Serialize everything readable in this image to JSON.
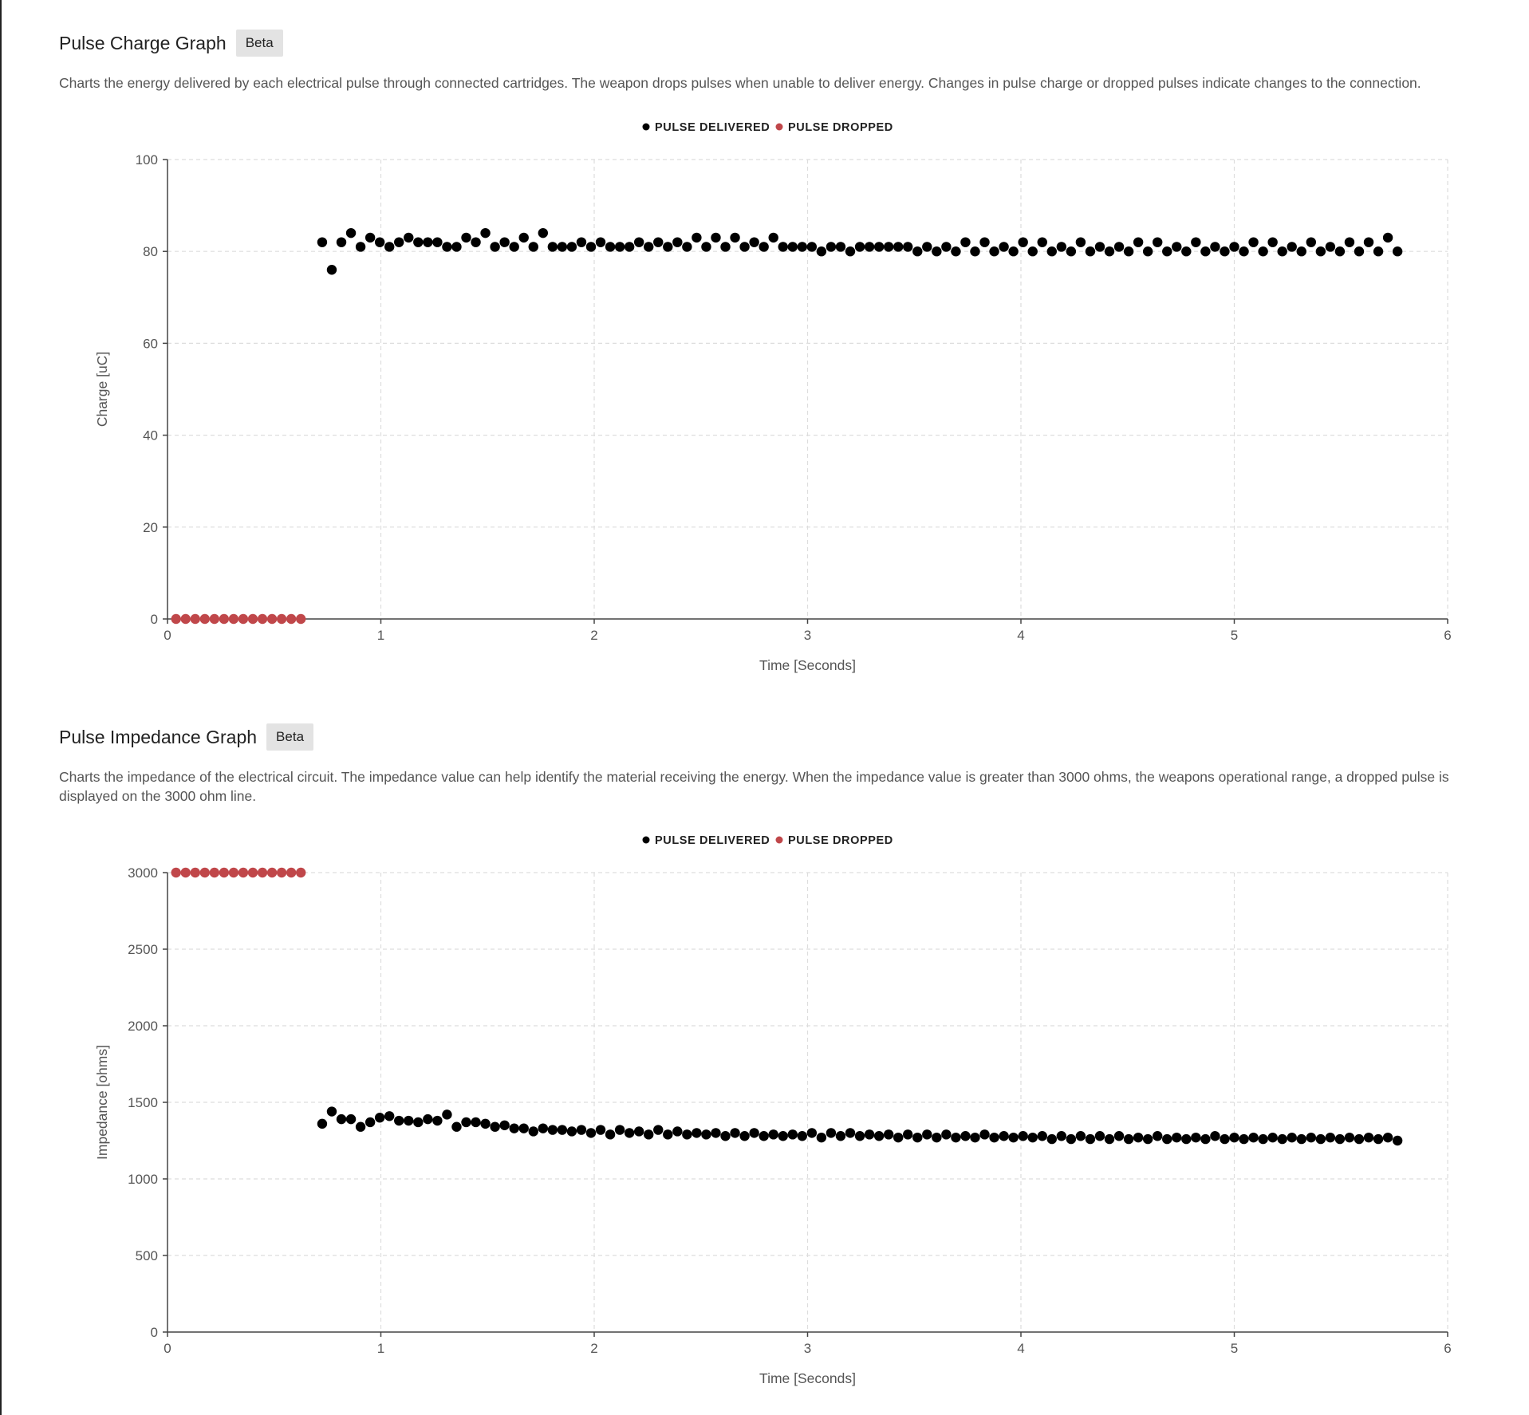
{
  "sections": [
    {
      "title": "Pulse Charge Graph",
      "badge": "Beta",
      "description": "Charts the energy delivered by each electrical pulse through connected cartridges. The weapon drops pulses when unable to deliver energy. Changes in pulse charge or dropped pulses indicate changes to the connection."
    },
    {
      "title": "Pulse Impedance Graph",
      "badge": "Beta",
      "description": "Charts the impedance of the electrical circuit. The impedance value can help identify the material receiving the energy. When the impedance value is greater than 3000 ohms, the weapons operational range, a dropped pulse is displayed on the 3000 ohm line."
    }
  ],
  "colors": {
    "delivered": "#000000",
    "dropped": "#c0474a",
    "grid": "#dddddd",
    "axis": "#444444"
  },
  "chart_data": [
    {
      "type": "scatter",
      "xlabel": "Time [Seconds]",
      "ylabel": "Charge [uC]",
      "xlim": [
        0,
        6
      ],
      "ylim": [
        0,
        100
      ],
      "xticks": [
        0,
        1,
        2,
        3,
        4,
        5,
        6
      ],
      "yticks": [
        0,
        20,
        40,
        60,
        80,
        100
      ],
      "grid": true,
      "legend_position": "top-center",
      "series": [
        {
          "name": "PULSE DELIVERED",
          "color": "#000000",
          "x": [
            0.725,
            0.77,
            0.815,
            0.86,
            0.905,
            0.95,
            0.995,
            1.04,
            1.085,
            1.13,
            1.175,
            1.22,
            1.265,
            1.31,
            1.355,
            1.4,
            1.445,
            1.49,
            1.535,
            1.58,
            1.625,
            1.67,
            1.715,
            1.76,
            1.805,
            1.85,
            1.895,
            1.94,
            1.985,
            2.03,
            2.075,
            2.12,
            2.165,
            2.21,
            2.255,
            2.3,
            2.345,
            2.39,
            2.435,
            2.48,
            2.525,
            2.57,
            2.615,
            2.66,
            2.705,
            2.75,
            2.795,
            2.84,
            2.885,
            2.93,
            2.975,
            3.02,
            3.065,
            3.11,
            3.155,
            3.2,
            3.245,
            3.29,
            3.335,
            3.38,
            3.425,
            3.47,
            3.515,
            3.56,
            3.605,
            3.65,
            3.695,
            3.74,
            3.785,
            3.83,
            3.875,
            3.92,
            3.965,
            4.01,
            4.055,
            4.1,
            4.145,
            4.19,
            4.235,
            4.28,
            4.325,
            4.37,
            4.415,
            4.46,
            4.505,
            4.55,
            4.595,
            4.64,
            4.685,
            4.73,
            4.775,
            4.82,
            4.865,
            4.91,
            4.955,
            5.0,
            5.045,
            5.09,
            5.135,
            5.18,
            5.225,
            5.27,
            5.315,
            5.36,
            5.405,
            5.45,
            5.495,
            5.54,
            5.585,
            5.63,
            5.675,
            5.72,
            5.765
          ],
          "y": [
            82,
            76,
            82,
            84,
            81,
            83,
            82,
            81,
            82,
            83,
            82,
            82,
            82,
            81,
            81,
            83,
            82,
            84,
            81,
            82,
            81,
            83,
            81,
            84,
            81,
            81,
            81,
            82,
            81,
            82,
            81,
            81,
            81,
            82,
            81,
            82,
            81,
            82,
            81,
            83,
            81,
            83,
            81,
            83,
            81,
            82,
            81,
            83,
            81,
            81,
            81,
            81,
            80,
            81,
            81,
            80,
            81,
            81,
            81,
            81,
            81,
            81,
            80,
            81,
            80,
            81,
            80,
            82,
            80,
            82,
            80,
            81,
            80,
            82,
            80,
            82,
            80,
            81,
            80,
            82,
            80,
            81,
            80,
            81,
            80,
            82,
            80,
            82,
            80,
            81,
            80,
            82,
            80,
            81,
            80,
            81,
            80,
            82,
            80,
            82,
            80,
            81,
            80,
            82,
            80,
            81,
            80,
            82,
            80,
            82,
            80,
            83,
            80
          ]
        },
        {
          "name": "PULSE DROPPED",
          "color": "#c0474a",
          "x": [
            0.04,
            0.085,
            0.13,
            0.175,
            0.22,
            0.265,
            0.31,
            0.355,
            0.4,
            0.445,
            0.49,
            0.535,
            0.58,
            0.625
          ],
          "y": [
            0,
            0,
            0,
            0,
            0,
            0,
            0,
            0,
            0,
            0,
            0,
            0,
            0,
            0
          ]
        }
      ]
    },
    {
      "type": "scatter",
      "xlabel": "Time [Seconds]",
      "ylabel": "Impedance [ohms]",
      "xlim": [
        0,
        6
      ],
      "ylim": [
        0,
        3000
      ],
      "xticks": [
        0,
        1,
        2,
        3,
        4,
        5,
        6
      ],
      "yticks": [
        0,
        500,
        1000,
        1500,
        2000,
        2500,
        3000
      ],
      "grid": true,
      "legend_position": "top-center",
      "series": [
        {
          "name": "PULSE DELIVERED",
          "color": "#000000",
          "x": [
            0.725,
            0.77,
            0.815,
            0.86,
            0.905,
            0.95,
            0.995,
            1.04,
            1.085,
            1.13,
            1.175,
            1.22,
            1.265,
            1.31,
            1.355,
            1.4,
            1.445,
            1.49,
            1.535,
            1.58,
            1.625,
            1.67,
            1.715,
            1.76,
            1.805,
            1.85,
            1.895,
            1.94,
            1.985,
            2.03,
            2.075,
            2.12,
            2.165,
            2.21,
            2.255,
            2.3,
            2.345,
            2.39,
            2.435,
            2.48,
            2.525,
            2.57,
            2.615,
            2.66,
            2.705,
            2.75,
            2.795,
            2.84,
            2.885,
            2.93,
            2.975,
            3.02,
            3.065,
            3.11,
            3.155,
            3.2,
            3.245,
            3.29,
            3.335,
            3.38,
            3.425,
            3.47,
            3.515,
            3.56,
            3.605,
            3.65,
            3.695,
            3.74,
            3.785,
            3.83,
            3.875,
            3.92,
            3.965,
            4.01,
            4.055,
            4.1,
            4.145,
            4.19,
            4.235,
            4.28,
            4.325,
            4.37,
            4.415,
            4.46,
            4.505,
            4.55,
            4.595,
            4.64,
            4.685,
            4.73,
            4.775,
            4.82,
            4.865,
            4.91,
            4.955,
            5.0,
            5.045,
            5.09,
            5.135,
            5.18,
            5.225,
            5.27,
            5.315,
            5.36,
            5.405,
            5.45,
            5.495,
            5.54,
            5.585,
            5.63,
            5.675,
            5.72,
            5.765
          ],
          "y": [
            1360,
            1440,
            1390,
            1390,
            1340,
            1370,
            1400,
            1410,
            1380,
            1380,
            1370,
            1390,
            1380,
            1420,
            1340,
            1370,
            1370,
            1360,
            1340,
            1350,
            1330,
            1330,
            1310,
            1330,
            1320,
            1320,
            1310,
            1320,
            1300,
            1320,
            1290,
            1320,
            1300,
            1310,
            1290,
            1320,
            1290,
            1310,
            1290,
            1300,
            1290,
            1300,
            1280,
            1300,
            1280,
            1300,
            1280,
            1290,
            1280,
            1290,
            1280,
            1300,
            1270,
            1300,
            1280,
            1300,
            1280,
            1290,
            1280,
            1290,
            1270,
            1290,
            1270,
            1290,
            1270,
            1290,
            1270,
            1280,
            1270,
            1290,
            1270,
            1280,
            1270,
            1280,
            1270,
            1280,
            1260,
            1280,
            1260,
            1280,
            1260,
            1280,
            1260,
            1280,
            1260,
            1270,
            1260,
            1280,
            1260,
            1270,
            1260,
            1270,
            1260,
            1280,
            1260,
            1270,
            1260,
            1270,
            1260,
            1270,
            1260,
            1270,
            1260,
            1270,
            1260,
            1270,
            1260,
            1270,
            1260,
            1270,
            1260,
            1270,
            1250
          ]
        },
        {
          "name": "PULSE DROPPED",
          "color": "#c0474a",
          "x": [
            0.04,
            0.085,
            0.13,
            0.175,
            0.22,
            0.265,
            0.31,
            0.355,
            0.4,
            0.445,
            0.49,
            0.535,
            0.58,
            0.625
          ],
          "y": [
            3000,
            3000,
            3000,
            3000,
            3000,
            3000,
            3000,
            3000,
            3000,
            3000,
            3000,
            3000,
            3000,
            3000
          ]
        }
      ]
    }
  ]
}
